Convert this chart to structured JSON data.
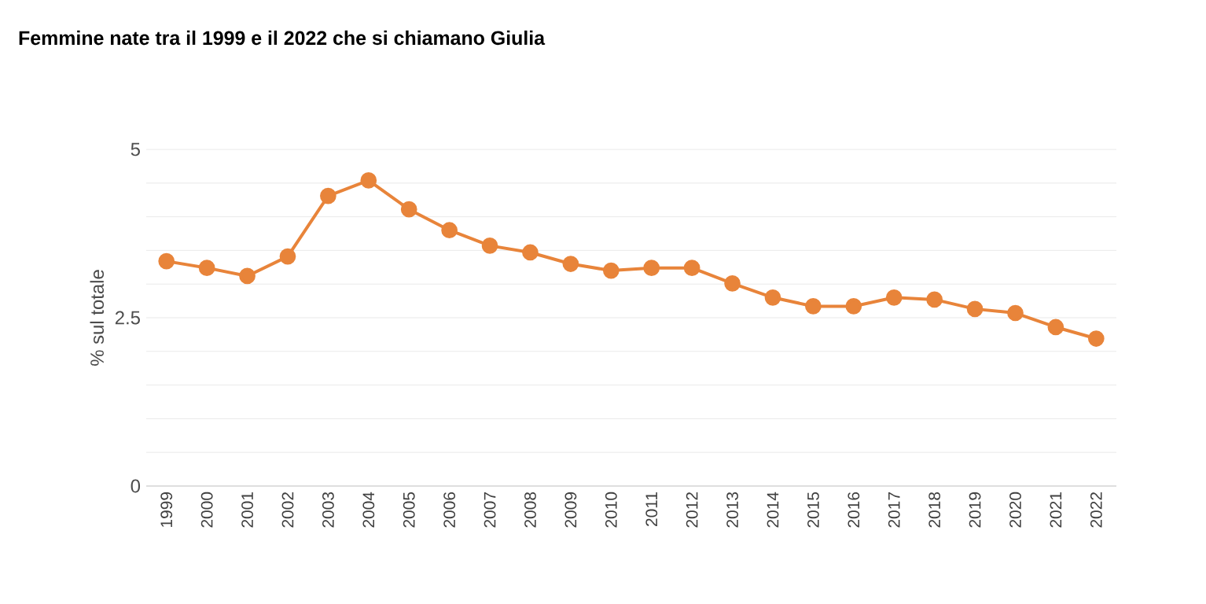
{
  "chart_data": {
    "type": "line",
    "title": "Femmine nate tra il 1999 e il 2022 che si chiamano Giulia",
    "ylabel": "% sul totale",
    "categories": [
      "1999",
      "2000",
      "2001",
      "2002",
      "2003",
      "2004",
      "2005",
      "2006",
      "2007",
      "2008",
      "2009",
      "2010",
      "2011",
      "2012",
      "2013",
      "2014",
      "2015",
      "2016",
      "2017",
      "2018",
      "2019",
      "2020",
      "2021",
      "2022"
    ],
    "series": [
      {
        "color": "#e8843a",
        "values": [
          3.34,
          3.24,
          3.12,
          3.41,
          4.31,
          4.54,
          4.11,
          3.8,
          3.57,
          3.47,
          3.3,
          3.2,
          3.24,
          3.24,
          3.01,
          2.8,
          2.67,
          2.67,
          2.8,
          2.77,
          2.63,
          2.57,
          2.36,
          2.19
        ]
      }
    ],
    "ylim": [
      0,
      5
    ],
    "yticks": [
      0,
      {
        "value": 0.5,
        "label": null
      },
      {
        "value": 1,
        "label": null
      },
      {
        "value": 1.5,
        "label": null
      },
      {
        "value": 2,
        "label": null
      },
      2.5,
      {
        "value": 3,
        "label": null
      },
      {
        "value": 3.5,
        "label": null
      },
      {
        "value": 4,
        "label": null
      },
      {
        "value": 4.5,
        "label": null
      },
      5
    ],
    "grid": "y",
    "marker": "circle",
    "line_style": "solid"
  }
}
